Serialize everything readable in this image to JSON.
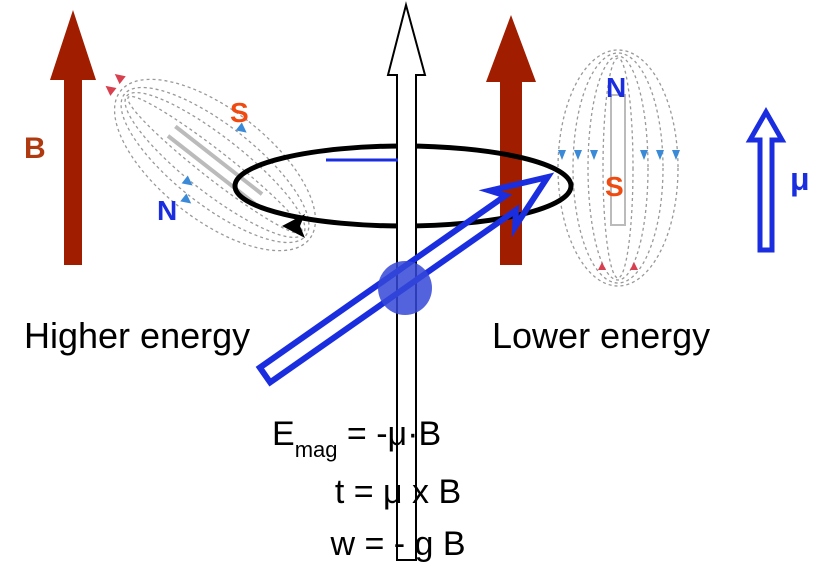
{
  "left_magnet": {
    "field_label": "B",
    "south": "S",
    "north": "N",
    "caption": "Higher energy"
  },
  "right_magnet": {
    "north": "N",
    "south": "S",
    "caption": "Lower energy"
  },
  "moment_label": "μ",
  "equations": [
    {
      "text": "E",
      "subscript": "mag",
      "rest": " = -μ·B"
    },
    {
      "text": "t = μ x B"
    },
    {
      "text": "w = - g B"
    }
  ]
}
